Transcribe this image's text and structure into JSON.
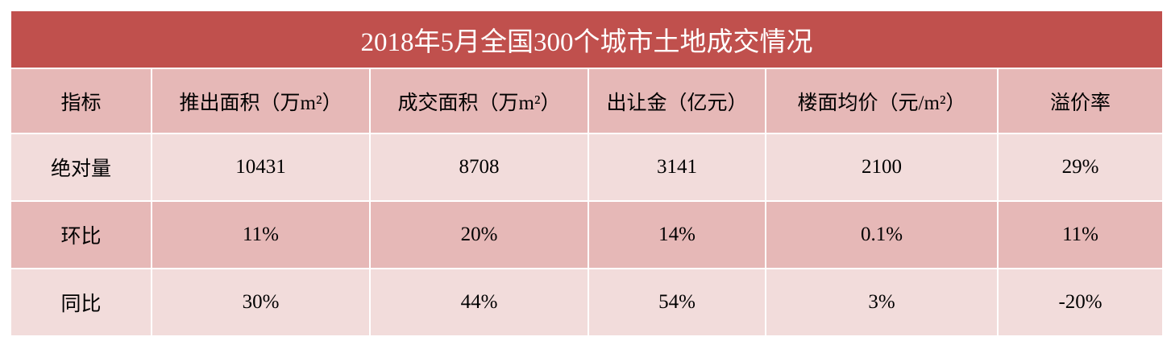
{
  "title": "2018年5月全国300个城市土地成交情况",
  "colors": {
    "title_bg": "#C0504D",
    "header_bg": "#E6B8B7",
    "row_light": "#F2DCDB",
    "row_dark": "#E6B8B7"
  },
  "headers": [
    "指标",
    "推出面积（万m²）",
    "成交面积（万m²）",
    "出让金（亿元）",
    "楼面均价（元/m²）",
    "溢价率"
  ],
  "rows": [
    [
      "绝对量",
      "10431",
      "8708",
      "3141",
      "2100",
      "29%"
    ],
    [
      "环比",
      "11%",
      "20%",
      "14%",
      "0.1%",
      "11%"
    ],
    [
      "同比",
      "30%",
      "44%",
      "54%",
      "3%",
      "-20%"
    ]
  ]
}
